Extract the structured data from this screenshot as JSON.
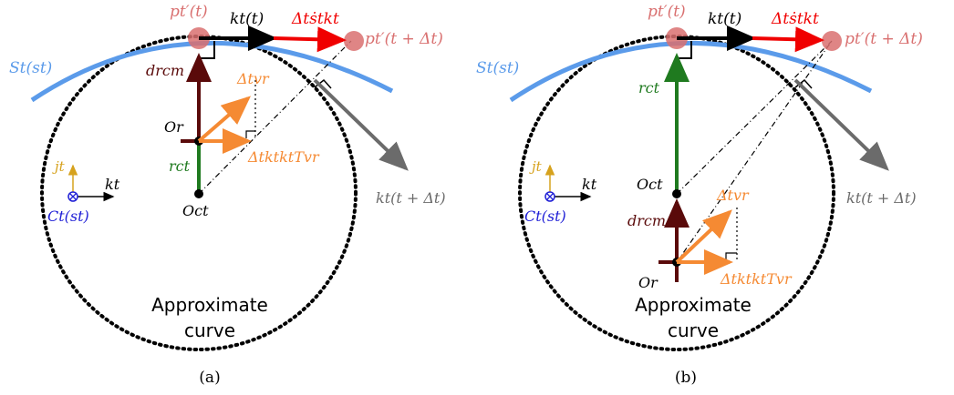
{
  "colors": {
    "surface": "#5b9bea",
    "red": "#f00000",
    "dark_red": "#5a0a0a",
    "green": "#1f7a1f",
    "orange": "#f58a33",
    "gray": "#6b6b6b",
    "blue": "#1f1fd6",
    "gold": "#d6a21e",
    "pink": "#d97070",
    "black": "#000000"
  },
  "panel_a": {
    "caption": "(a)",
    "surface_label": "St(st)",
    "point_label": "pt′(t)",
    "point_next_label": "pt′(t + Δt)",
    "tangent_label": "kt(t)",
    "delta_label": "Δtṡtkt",
    "tangent_next_label": "kt(t + Δt)",
    "drcm_label": "drcm",
    "rc_label": "rct",
    "or_label": "Or",
    "oc_label": "Oct",
    "dv_label": "Δtvr",
    "proj_label": "ΔtktktTvr",
    "frame_j": "jt",
    "frame_k": "kt",
    "frame_c": "Ct(st)",
    "curve_label_1": "Approximate",
    "curve_label_2": "curve"
  },
  "panel_b": {
    "caption": "(b)",
    "surface_label": "St(st)",
    "point_label": "pt′(t)",
    "point_next_label": "pt′(t + Δt)",
    "tangent_label": "kt(t)",
    "delta_label": "Δtṡtkt",
    "tangent_next_label": "kt(t + Δt)",
    "drcm_label": "drcm",
    "rc_label": "rct",
    "or_label": "Or",
    "oc_label": "Oct",
    "dv_label": "Δtvr",
    "proj_label": "ΔtktktTvr",
    "frame_j": "jt",
    "frame_k": "kt",
    "frame_c": "Ct(st)",
    "curve_label_1": "Approximate",
    "curve_label_2": "curve"
  }
}
